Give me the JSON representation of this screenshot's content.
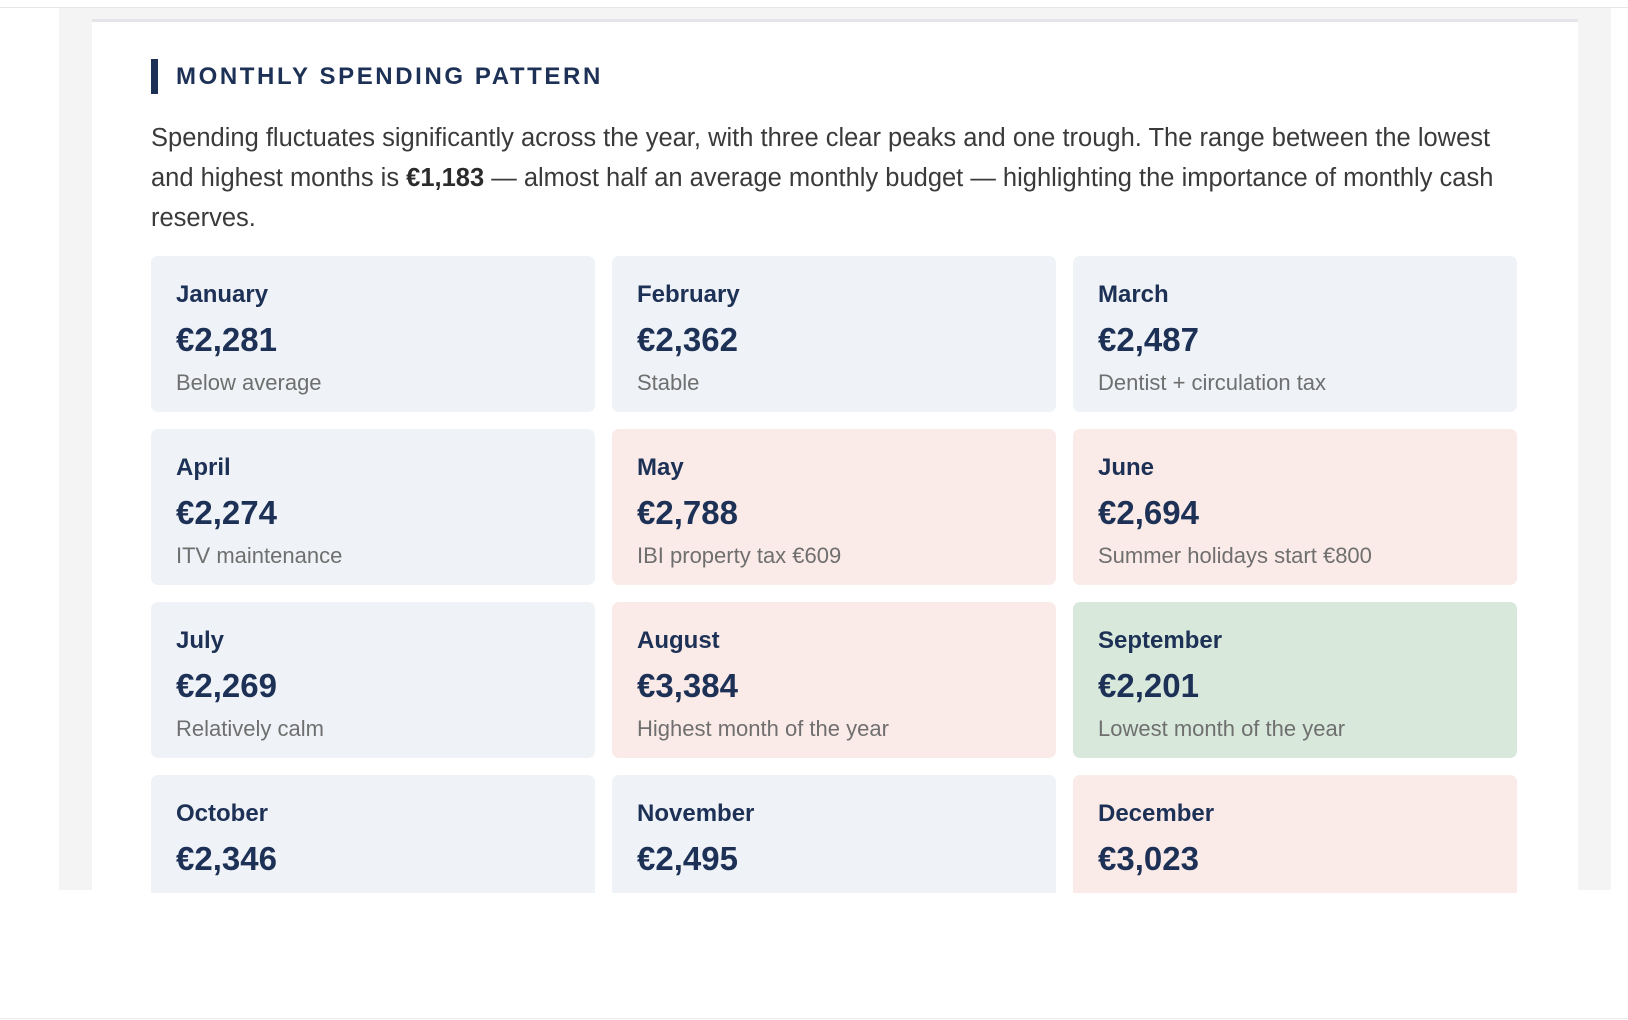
{
  "section": {
    "title": "MONTHLY SPENDING PATTERN",
    "intro_before": "Spending fluctuates significantly across the year, with three clear peaks and one trough. The range between the lowest and highest months is ",
    "intro_highlight": "€1,183",
    "intro_after": " — almost half an average monthly budget — highlighting the importance of monthly cash reserves."
  },
  "colors": {
    "accent": "#1d3156",
    "card_default": "#eff2f6",
    "card_high": "#fbebe8",
    "card_low": "#d8e9dc"
  },
  "months": [
    {
      "month": "January",
      "amount": "€2,281",
      "note": "Below average",
      "status": "normal"
    },
    {
      "month": "February",
      "amount": "€2,362",
      "note": "Stable",
      "status": "normal"
    },
    {
      "month": "March",
      "amount": "€2,487",
      "note": "Dentist + circulation tax",
      "status": "normal"
    },
    {
      "month": "April",
      "amount": "€2,274",
      "note": "ITV maintenance",
      "status": "normal"
    },
    {
      "month": "May",
      "amount": "€2,788",
      "note": "IBI property tax €609",
      "status": "high"
    },
    {
      "month": "June",
      "amount": "€2,694",
      "note": "Summer holidays start €800",
      "status": "high"
    },
    {
      "month": "July",
      "amount": "€2,269",
      "note": "Relatively calm",
      "status": "normal"
    },
    {
      "month": "August",
      "amount": "€3,384",
      "note": "Highest month of the year",
      "status": "high"
    },
    {
      "month": "September",
      "amount": "€2,201",
      "note": "Lowest month of the year",
      "status": "low"
    },
    {
      "month": "October",
      "amount": "€2,346",
      "note": "",
      "status": "normal"
    },
    {
      "month": "November",
      "amount": "€2,495",
      "note": "",
      "status": "normal"
    },
    {
      "month": "December",
      "amount": "€3,023",
      "note": "",
      "status": "high"
    }
  ]
}
